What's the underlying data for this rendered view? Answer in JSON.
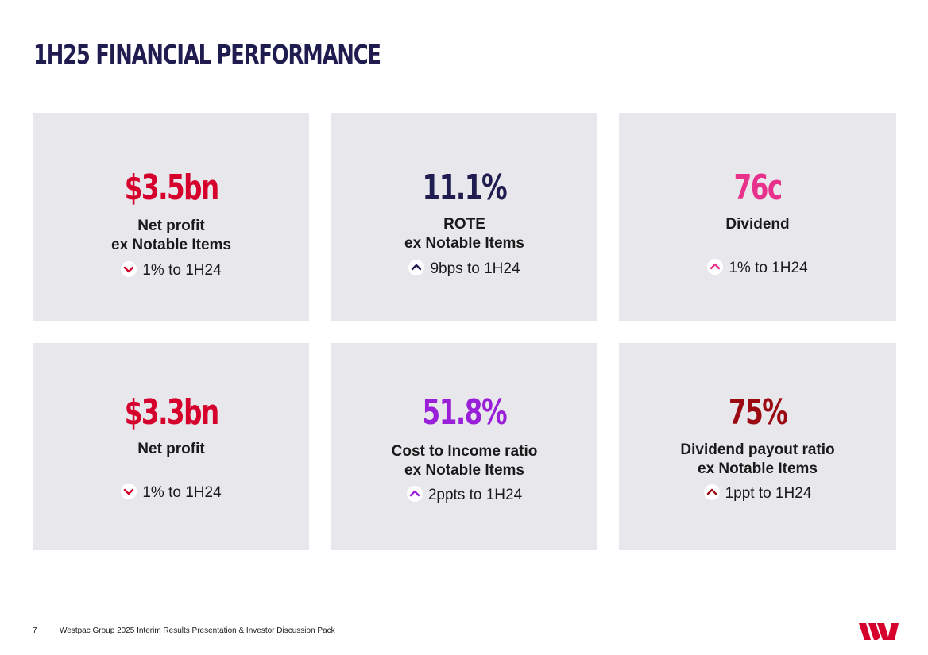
{
  "page": {
    "title": "1H25 FINANCIAL PERFORMANCE",
    "footer_page_number": "7",
    "footer_text": "Westpac Group 2025 Interim Results Presentation & Investor Discussion Pack",
    "logo_icon": "westpac-w-logo",
    "logo_color": "#d5002b"
  },
  "cards": [
    {
      "metric": "$3.5bn",
      "metric_color": "#d5002b",
      "label_line1": "Net profit",
      "label_line2": "ex Notable Items",
      "change_direction": "down",
      "change_text": "1% to 1H24",
      "arrow_color": "#d5002b"
    },
    {
      "metric": "11.1%",
      "metric_color": "#1f1c4f",
      "label_line1": "ROTE",
      "label_line2": "ex Notable Items",
      "change_direction": "up",
      "change_text": "9bps to 1H24",
      "arrow_color": "#1f1c4f"
    },
    {
      "metric": "76c",
      "metric_color": "#e8318a",
      "label_line1": "Dividend",
      "label_line2": "",
      "change_direction": "up",
      "change_text": "1% to 1H24",
      "arrow_color": "#e8318a"
    },
    {
      "metric": "$3.3bn",
      "metric_color": "#d5002b",
      "label_line1": "Net profit",
      "label_line2": "",
      "change_direction": "down",
      "change_text": "1% to 1H24",
      "arrow_color": "#d5002b"
    },
    {
      "metric": "51.8%",
      "metric_color": "#9a1fd8",
      "label_line1": "Cost to Income ratio",
      "label_line2": "ex Notable Items",
      "change_direction": "up",
      "change_text": "2ppts to 1H24",
      "arrow_color": "#9a1fd8"
    },
    {
      "metric": "75%",
      "metric_color": "#9b0a12",
      "label_line1": "Dividend payout ratio",
      "label_line2": "ex Notable Items",
      "change_direction": "up",
      "change_text": "1ppt to 1H24",
      "arrow_color": "#9b0a12"
    }
  ]
}
